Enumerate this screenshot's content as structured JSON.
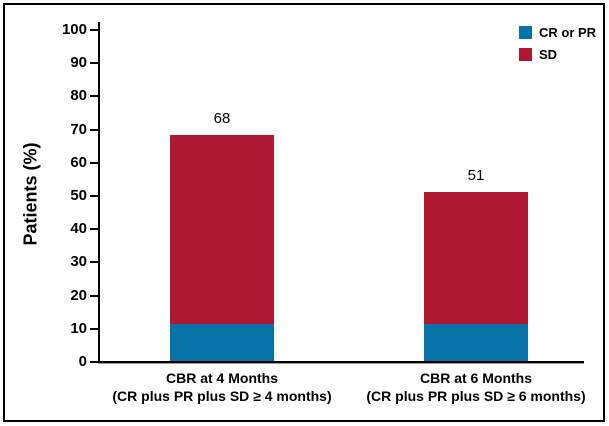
{
  "chart_data": {
    "type": "bar",
    "stacked": true,
    "title": "",
    "xlabel": "",
    "ylabel": "Patients (%)",
    "ylim": [
      0,
      100
    ],
    "yticks": [
      0,
      10,
      20,
      30,
      40,
      50,
      60,
      70,
      80,
      90,
      100
    ],
    "grid": false,
    "legend_position": "top-right",
    "categories": [
      {
        "label_line1": "CBR at 4 Months",
        "label_line2": "(CR plus PR plus SD ≥ 4 months)"
      },
      {
        "label_line1": "CBR at 6 Months",
        "label_line2": "(CR plus PR plus SD ≥ 6 months)"
      }
    ],
    "series": [
      {
        "name": "CR or PR",
        "color": "#0673A8",
        "values": [
          11,
          11
        ]
      },
      {
        "name": "SD",
        "color": "#B01730",
        "values": [
          57,
          40
        ]
      }
    ],
    "bar_total_labels": [
      "68",
      "51"
    ],
    "colors": {
      "axis": "#000000",
      "text": "#000000",
      "background": "#ffffff"
    }
  }
}
